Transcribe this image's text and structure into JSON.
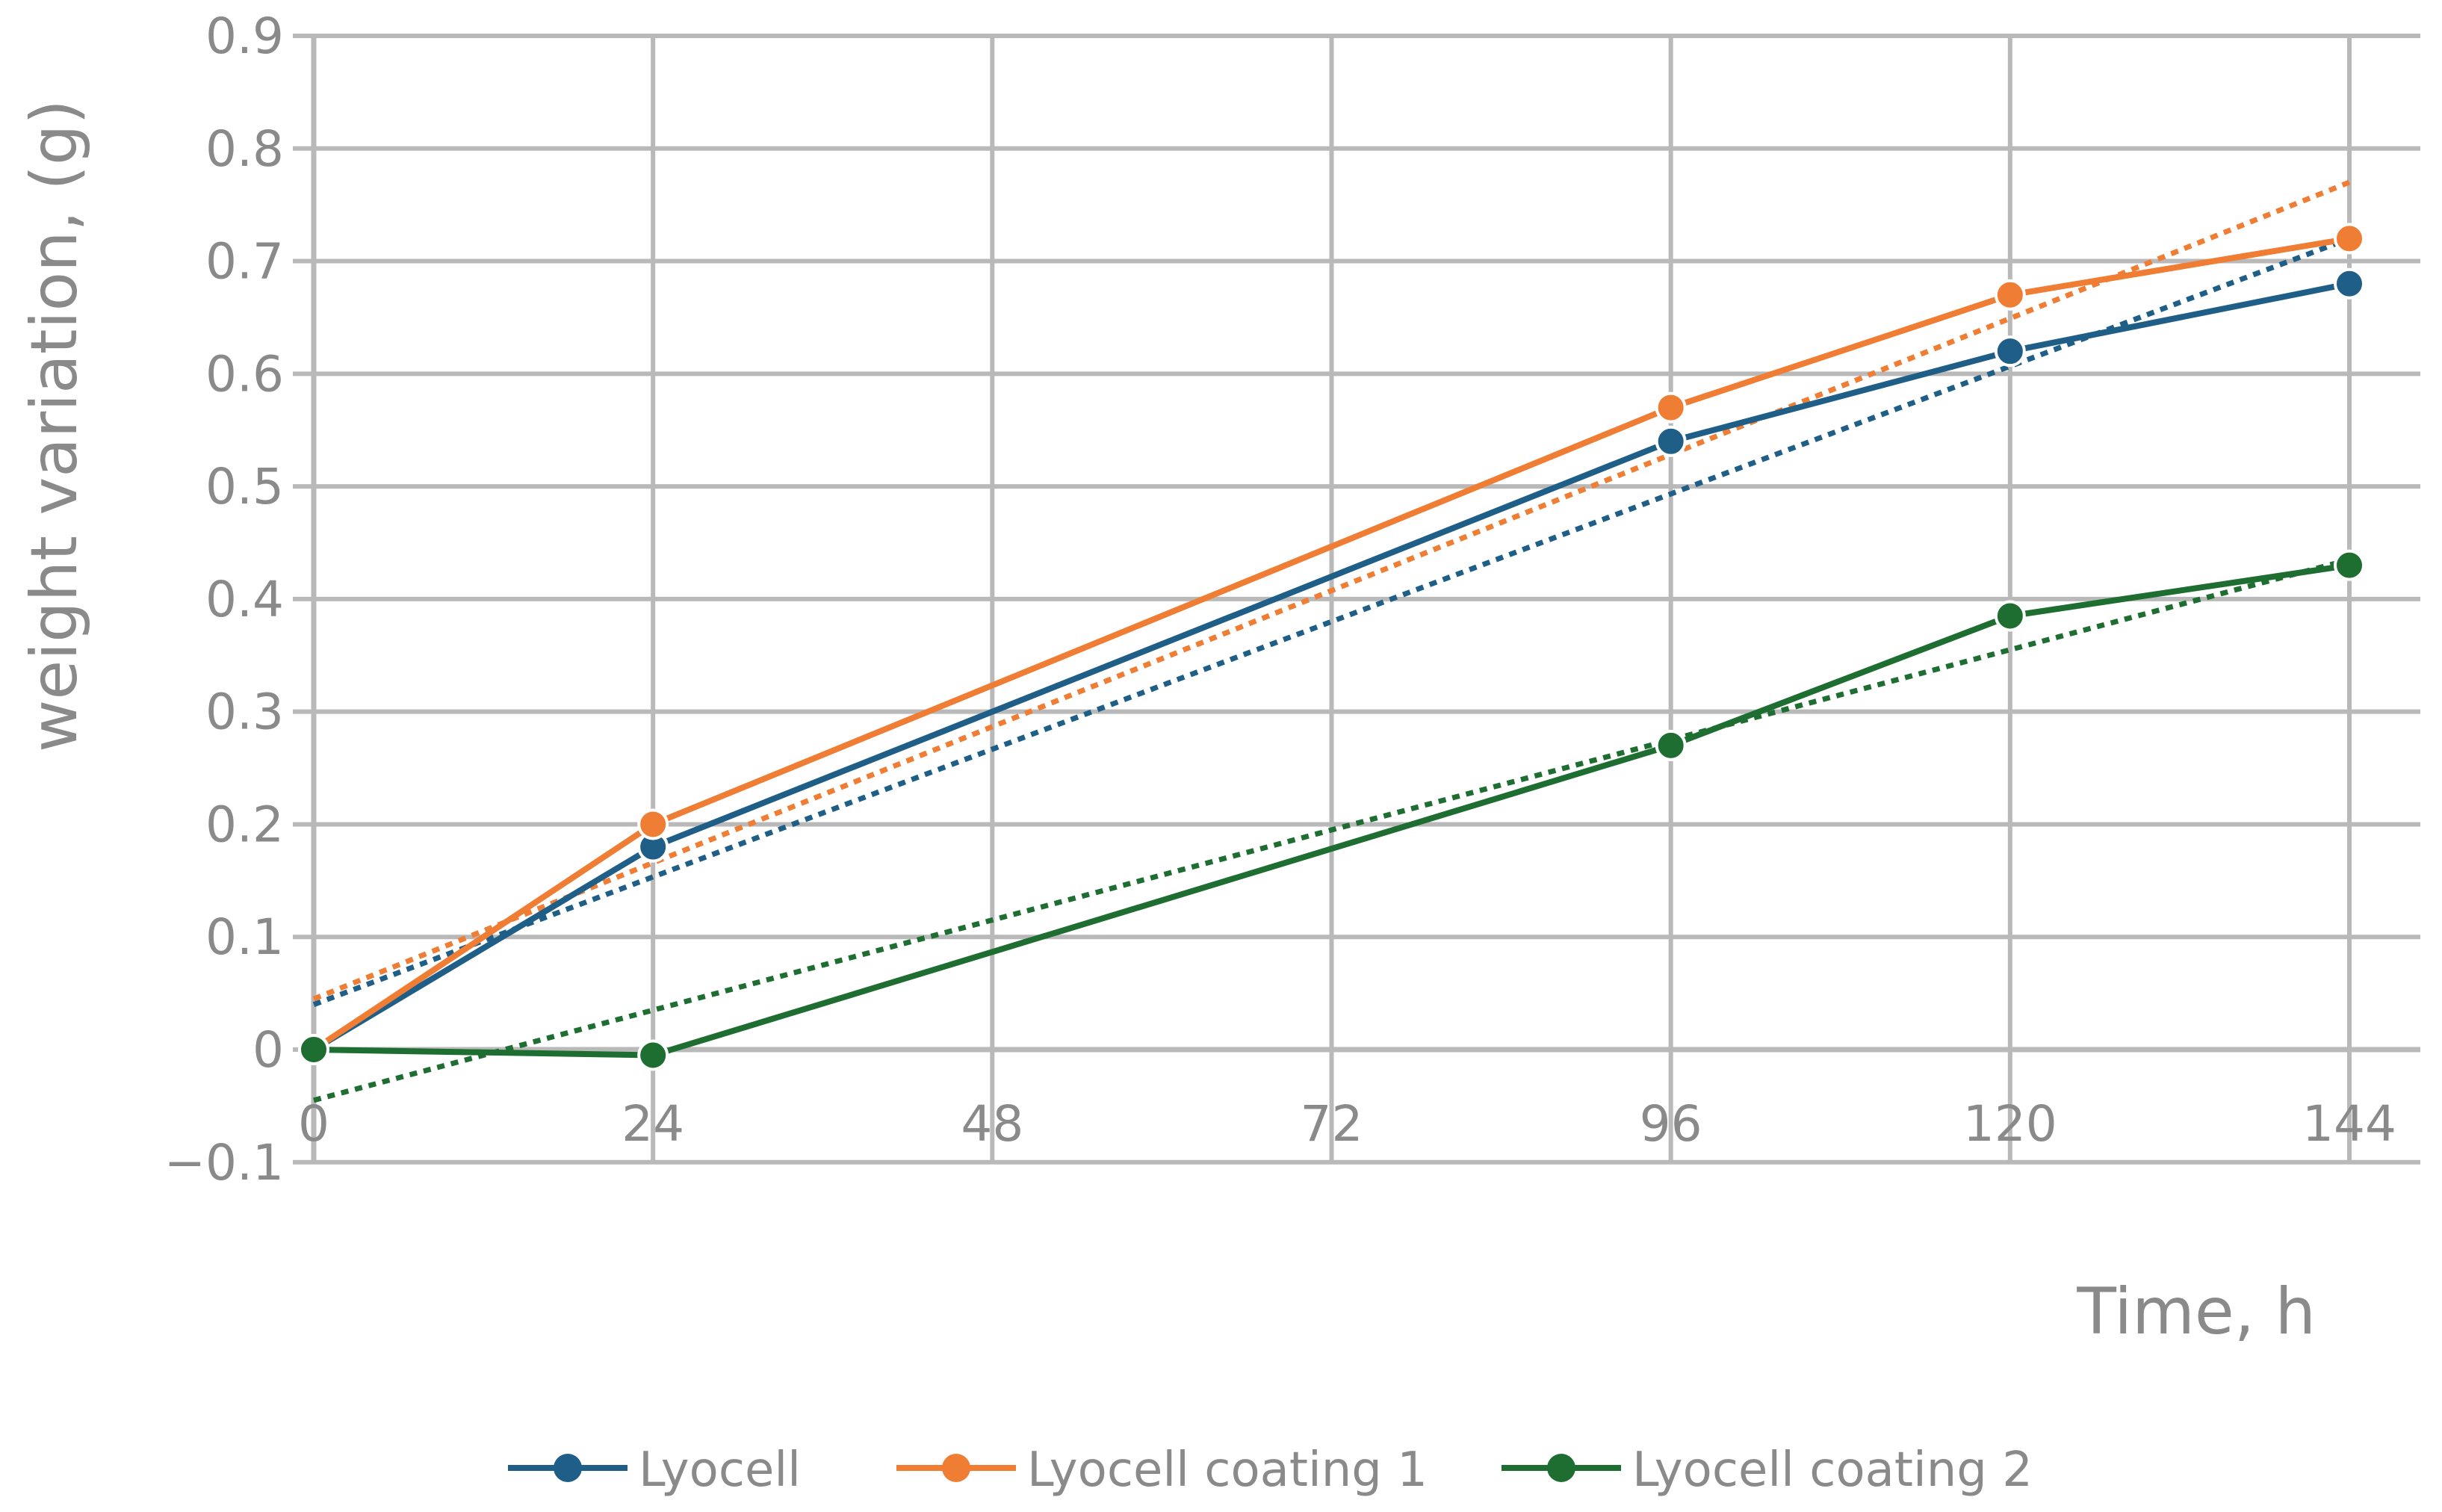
{
  "chart_data": {
    "type": "line",
    "title": "",
    "xlabel": "Time, h",
    "ylabel": "weight variation, (g)",
    "x": [
      0,
      24,
      96,
      120,
      144
    ],
    "xticks": [
      "0",
      "24",
      "48",
      "72",
      "96",
      "120",
      "144"
    ],
    "xlim": [
      0,
      144
    ],
    "yticks": [
      "0.9",
      "0.8",
      "0.7",
      "0.6",
      "0.5",
      "0.4",
      "0.3",
      "0.2",
      "0.1",
      "0",
      "−0.1"
    ],
    "ylim": [
      -0.1,
      0.9
    ],
    "grid": true,
    "legend_position": "bottom",
    "series": [
      {
        "name": "Lyocell",
        "color": "#1f5f87",
        "values": [
          0,
          0.18,
          0.54,
          0.62,
          0.68
        ],
        "trendline": {
          "type": "linear",
          "start": 0.04,
          "end": 0.72
        }
      },
      {
        "name": "Lyocell coating 1",
        "color": "#ef7d33",
        "values": [
          0,
          0.2,
          0.57,
          0.67,
          0.72
        ],
        "trendline": {
          "type": "linear",
          "start": 0.045,
          "end": 0.77
        }
      },
      {
        "name": "Lyocell coating 2",
        "color": "#1e6e31",
        "values": [
          0,
          -0.005,
          0.27,
          0.385,
          0.43
        ],
        "trendline": {
          "type": "linear",
          "start": -0.045,
          "end": 0.435
        }
      }
    ]
  }
}
